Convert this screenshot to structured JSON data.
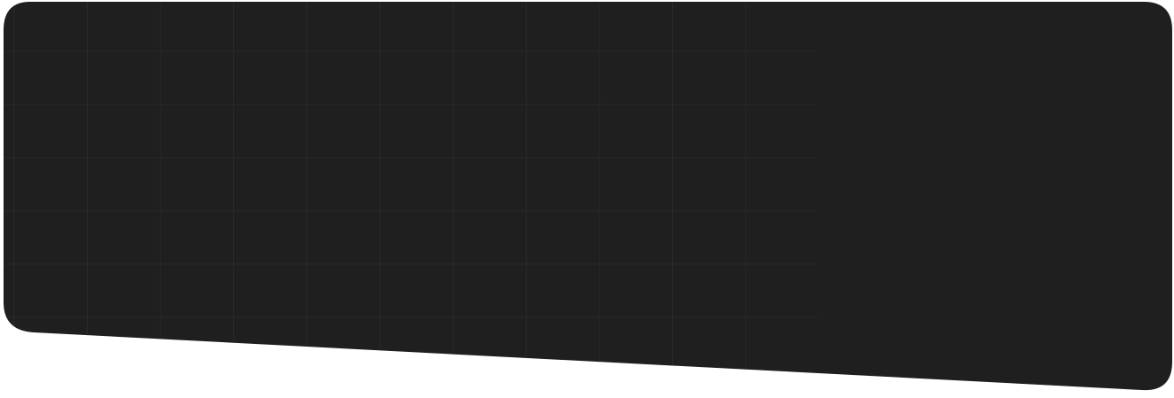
{
  "panel": {
    "background_color": "#1f1f1f",
    "grid_line_color": "#2a2a2a",
    "page_background_color": "#ffffff",
    "grid_visible": true
  }
}
